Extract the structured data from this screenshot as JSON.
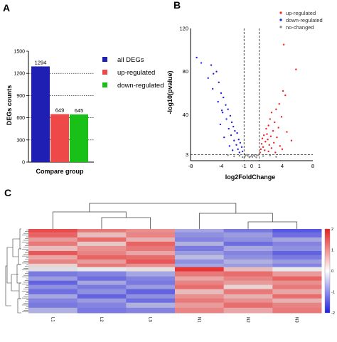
{
  "panels": {
    "a": "A",
    "b": "B",
    "c": "C"
  },
  "chart_data": [
    {
      "type": "bar",
      "panel": "A",
      "categories": [
        "all DEGs",
        "up-regulated",
        "down-regulated"
      ],
      "values": [
        1294,
        649,
        645
      ],
      "value_labels": [
        "1294",
        "649",
        "645"
      ],
      "colors": [
        "#1f1fb4",
        "#ee4848",
        "#18c018"
      ],
      "xlabel": "Compare group",
      "ylabel": "DEGs counts",
      "ylim": [
        0,
        1500
      ],
      "yticks": [
        0,
        300,
        600,
        900,
        1200,
        1500
      ],
      "reference_lines": [
        300,
        600,
        900,
        1200
      ],
      "legend": [
        "all DEGs",
        "up-regulated",
        "down-regulated"
      ],
      "legend_position": "right"
    },
    {
      "type": "scatter",
      "panel": "B",
      "xlabel": "log2FoldChange",
      "ylabel": "-log10(pvalue)",
      "xlim": [
        -8,
        8
      ],
      "ylim": [
        0,
        120
      ],
      "xticks": [
        -8,
        -4,
        -1,
        0,
        1,
        4,
        8
      ],
      "yticks": [
        3,
        40,
        80,
        120
      ],
      "thresholds": {
        "x": [
          -1,
          1
        ],
        "y": 3
      },
      "legend": [
        "up-regulated",
        "down-regulated",
        "no-changed"
      ],
      "legend_position": "top-right",
      "series": [
        {
          "name": "up-regulated",
          "color": "#ee2222",
          "count": 649,
          "points": [
            [
              4.2,
              105
            ],
            [
              5.8,
              82
            ],
            [
              4.1,
              62
            ],
            [
              4.4,
              58
            ],
            [
              3.6,
              50
            ],
            [
              3.2,
              45
            ],
            [
              2.6,
              42
            ],
            [
              3.9,
              38
            ],
            [
              2.4,
              36
            ],
            [
              3.0,
              33
            ],
            [
              2.2,
              30
            ],
            [
              3.5,
              28
            ],
            [
              1.9,
              27
            ],
            [
              2.8,
              25
            ],
            [
              4.6,
              24
            ],
            [
              2.0,
              22
            ],
            [
              1.6,
              21
            ],
            [
              2.5,
              20
            ],
            [
              3.3,
              19
            ],
            [
              1.4,
              18
            ],
            [
              2.1,
              17
            ],
            [
              5.2,
              16
            ],
            [
              1.8,
              15
            ],
            [
              2.9,
              14
            ],
            [
              1.3,
              13
            ],
            [
              2.3,
              12
            ],
            [
              3.7,
              11
            ],
            [
              1.5,
              10
            ],
            [
              2.6,
              9
            ],
            [
              1.2,
              8
            ],
            [
              4.0,
              8
            ],
            [
              1.7,
              7
            ],
            [
              2.2,
              6
            ],
            [
              1.1,
              5
            ],
            [
              3.1,
              5
            ]
          ]
        },
        {
          "name": "down-regulated",
          "color": "#2222dd",
          "count": 645,
          "points": [
            [
              -6.6,
              88
            ],
            [
              -5.7,
              74
            ],
            [
              -5.3,
              86
            ],
            [
              -5.0,
              78
            ],
            [
              -4.6,
              80
            ],
            [
              -4.3,
              70
            ],
            [
              -5.1,
              64
            ],
            [
              -4.0,
              60
            ],
            [
              -3.7,
              56
            ],
            [
              -4.4,
              52
            ],
            [
              -3.4,
              49
            ],
            [
              -3.1,
              45
            ],
            [
              -3.8,
              42
            ],
            [
              -2.8,
              39
            ],
            [
              -3.3,
              36
            ],
            [
              -2.6,
              33
            ],
            [
              -4.1,
              31
            ],
            [
              -2.4,
              29
            ],
            [
              -3.0,
              27
            ],
            [
              -2.2,
              25
            ],
            [
              -1.9,
              23
            ],
            [
              -2.7,
              21
            ],
            [
              -3.6,
              19
            ],
            [
              -1.7,
              17
            ],
            [
              -2.3,
              16
            ],
            [
              -1.5,
              14
            ],
            [
              -2.0,
              12
            ],
            [
              -2.9,
              11
            ],
            [
              -1.3,
              10
            ],
            [
              -1.8,
              8
            ],
            [
              -2.5,
              7
            ],
            [
              -1.2,
              6
            ],
            [
              -1.6,
              5
            ],
            [
              -7.2,
              93
            ],
            [
              -3.9,
              44
            ]
          ]
        },
        {
          "name": "no-changed",
          "color": "#888888",
          "count": null,
          "points": [
            [
              -0.8,
              2.5
            ],
            [
              -0.5,
              1.8
            ],
            [
              -0.2,
              1.2
            ],
            [
              0.1,
              0.8
            ],
            [
              0.4,
              1.5
            ],
            [
              0.7,
              2.2
            ],
            [
              0.9,
              2.8
            ],
            [
              -0.9,
              1.0
            ],
            [
              0.3,
              2.6
            ],
            [
              -0.3,
              0.5
            ],
            [
              0.6,
              0.4
            ],
            [
              -0.6,
              2.9
            ],
            [
              1.5,
              1.6
            ],
            [
              -1.6,
              1.9
            ],
            [
              2.4,
              2.2
            ],
            [
              -2.3,
              1.4
            ],
            [
              3.2,
              0.9
            ],
            [
              -3.1,
              2.4
            ],
            [
              0.0,
              2.0
            ],
            [
              -1.2,
              0.7
            ]
          ]
        }
      ]
    },
    {
      "type": "heatmap",
      "panel": "C",
      "columns": [
        "L1",
        "L2",
        "L3",
        "N1",
        "N2",
        "N3"
      ],
      "colorbar": {
        "min": -2,
        "max": 2,
        "ticks": [
          "2",
          "1",
          "0",
          "-1",
          "-2"
        ],
        "colors": [
          "#e82020",
          "#ffffff",
          "#2020e0"
        ]
      },
      "row_blocks": [
        {
          "rows": 0.04,
          "values": [
            1.6,
            1.2,
            1.0,
            -0.8,
            -1.2,
            -1.5
          ]
        },
        {
          "rows": 0.06,
          "values": [
            1.4,
            0.6,
            1.1,
            -1.0,
            -0.9,
            -1.3
          ]
        },
        {
          "rows": 0.05,
          "values": [
            0.9,
            1.3,
            0.7,
            -1.1,
            -1.0,
            -0.8
          ]
        },
        {
          "rows": 0.05,
          "values": [
            1.2,
            0.5,
            1.4,
            -0.7,
            -1.3,
            -1.1
          ]
        },
        {
          "rows": 0.06,
          "values": [
            0.6,
            1.0,
            1.2,
            -1.2,
            -0.8,
            -1.0
          ]
        },
        {
          "rows": 0.05,
          "values": [
            1.5,
            1.1,
            0.8,
            -0.9,
            -1.1,
            -1.4
          ]
        },
        {
          "rows": 0.05,
          "values": [
            0.8,
            1.4,
            1.3,
            -0.6,
            -1.0,
            -1.2
          ]
        },
        {
          "rows": 0.05,
          "values": [
            1.1,
            0.9,
            1.5,
            -1.0,
            -0.7,
            -0.9
          ]
        },
        {
          "rows": 0.04,
          "values": [
            0.4,
            1.2,
            1.0,
            -0.8,
            -0.9,
            -1.1
          ]
        },
        {
          "rows": 0.05,
          "values": [
            -0.3,
            0.2,
            0.3,
            1.8,
            0.6,
            0.2
          ]
        },
        {
          "rows": 0.06,
          "values": [
            -1.2,
            -1.1,
            -0.8,
            1.2,
            1.3,
            0.9
          ]
        },
        {
          "rows": 0.05,
          "values": [
            -0.9,
            -1.3,
            -1.1,
            0.8,
            1.1,
            1.4
          ]
        },
        {
          "rows": 0.05,
          "values": [
            -1.4,
            -0.8,
            -1.2,
            1.1,
            0.9,
            1.0
          ]
        },
        {
          "rows": 0.05,
          "values": [
            -1.0,
            -1.2,
            -0.9,
            1.3,
            0.4,
            1.2
          ]
        },
        {
          "rows": 0.06,
          "values": [
            -1.3,
            -1.0,
            -1.4,
            0.6,
            1.2,
            0.8
          ]
        },
        {
          "rows": 0.05,
          "values": [
            -0.8,
            -1.4,
            -1.0,
            1.0,
            0.7,
            1.3
          ]
        },
        {
          "rows": 0.05,
          "values": [
            -1.1,
            -0.9,
            -1.3,
            1.2,
            1.0,
            0.7
          ]
        },
        {
          "rows": 0.06,
          "values": [
            -1.2,
            -1.1,
            -0.7,
            0.9,
            1.3,
            1.1
          ]
        },
        {
          "rows": 0.06,
          "values": [
            -0.7,
            -1.2,
            -1.1,
            1.1,
            0.8,
            1.2
          ]
        }
      ]
    }
  ]
}
